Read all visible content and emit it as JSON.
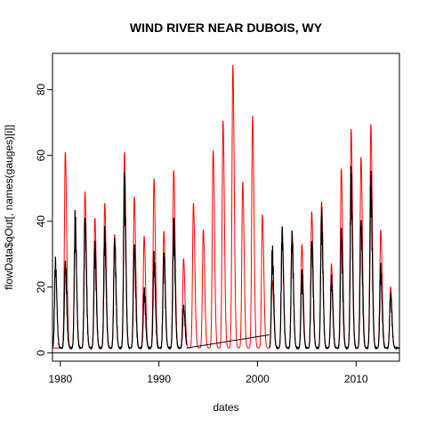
{
  "chart_data": {
    "type": "line",
    "title": "WIND RIVER NEAR DUBOIS, WY",
    "xlabel": "dates",
    "ylabel": "flowData$qOut[, names(gauges)[i]]",
    "xlim": [
      1979.2,
      2014.4
    ],
    "ylim": [
      -2.5,
      91
    ],
    "x_ticks": [
      1980,
      1990,
      2000,
      2010
    ],
    "x_tick_labels": [
      "1980",
      "1990",
      "2000",
      "2010"
    ],
    "y_ticks": [
      0,
      20,
      40,
      60,
      80
    ],
    "y_tick_labels": [
      "0",
      "20",
      "40",
      "60",
      "80"
    ],
    "horizontal_reference_line": 0,
    "grid": false,
    "legend": "none",
    "series": [
      {
        "color": "#ff0000",
        "annual_peaks": [
          {
            "x": 1980.5,
            "y": 61
          },
          {
            "x": 1981.5,
            "y": 38
          },
          {
            "x": 1982.5,
            "y": 49
          },
          {
            "x": 1983.5,
            "y": 41
          },
          {
            "x": 1984.5,
            "y": 45.5
          },
          {
            "x": 1985.5,
            "y": 36
          },
          {
            "x": 1986.5,
            "y": 61
          },
          {
            "x": 1987.5,
            "y": 47.5
          },
          {
            "x": 1988.5,
            "y": 35.5
          },
          {
            "x": 1989.5,
            "y": 53
          },
          {
            "x": 1990.5,
            "y": 37
          },
          {
            "x": 1991.5,
            "y": 55.5
          },
          {
            "x": 1992.5,
            "y": 28.5
          },
          {
            "x": 1993.5,
            "y": 45.5
          },
          {
            "x": 1994.5,
            "y": 37.5
          },
          {
            "x": 1995.5,
            "y": 61.5
          },
          {
            "x": 1996.5,
            "y": 70.5
          },
          {
            "x": 1997.5,
            "y": 87.5
          },
          {
            "x": 1998.5,
            "y": 52
          },
          {
            "x": 1999.5,
            "y": 72
          },
          {
            "x": 2000.5,
            "y": 42
          },
          {
            "x": 2001.5,
            "y": 22
          },
          {
            "x": 2002.5,
            "y": 38.5
          },
          {
            "x": 2003.5,
            "y": 37
          },
          {
            "x": 2004.5,
            "y": 33
          },
          {
            "x": 2005.5,
            "y": 43
          },
          {
            "x": 2006.5,
            "y": 46
          },
          {
            "x": 2007.5,
            "y": 27
          },
          {
            "x": 2008.5,
            "y": 56
          },
          {
            "x": 2009.5,
            "y": 68
          },
          {
            "x": 2010.5,
            "y": 59.5
          },
          {
            "x": 2011.5,
            "y": 69.5
          },
          {
            "x": 2012.5,
            "y": 37.5
          },
          {
            "x": 2013.5,
            "y": 20
          }
        ],
        "baseflow": 1.5
      },
      {
        "color": "#000000",
        "annual_peaks": [
          {
            "x": 1979.5,
            "y": 27
          },
          {
            "x": 1980.5,
            "y": 27
          },
          {
            "x": 1981.5,
            "y": 39.5
          },
          {
            "x": 1982.5,
            "y": 40.5
          },
          {
            "x": 1983.5,
            "y": 31.5
          },
          {
            "x": 1984.5,
            "y": 35
          },
          {
            "x": 1985.5,
            "y": 34
          },
          {
            "x": 1986.5,
            "y": 50.5
          },
          {
            "x": 1987.5,
            "y": 32
          },
          {
            "x": 1988.5,
            "y": 18.5
          },
          {
            "x": 1989.5,
            "y": 28
          },
          {
            "x": 1990.5,
            "y": 30
          },
          {
            "x": 1991.5,
            "y": 38
          },
          {
            "x": 1992.5,
            "y": 14
          },
          {
            "x": 2001.5,
            "y": 30
          },
          {
            "x": 2002.5,
            "y": 36
          },
          {
            "x": 2003.5,
            "y": 35
          },
          {
            "x": 2004.5,
            "y": 23
          },
          {
            "x": 2005.5,
            "y": 34
          },
          {
            "x": 2006.5,
            "y": 40.5
          },
          {
            "x": 2007.5,
            "y": 22
          },
          {
            "x": 2008.5,
            "y": 36
          },
          {
            "x": 2009.5,
            "y": 52
          },
          {
            "x": 2010.5,
            "y": 40
          },
          {
            "x": 2011.5,
            "y": 51
          },
          {
            "x": 2012.5,
            "y": 25
          },
          {
            "x": 2013.5,
            "y": 17.5
          }
        ],
        "gap": [
          1992.8,
          2001.2
        ],
        "gap_endpoints": [
          {
            "x": 1992.8,
            "y": 1.5
          },
          {
            "x": 2001.2,
            "y": 5.5
          }
        ],
        "baseflow": 1.5
      }
    ]
  }
}
